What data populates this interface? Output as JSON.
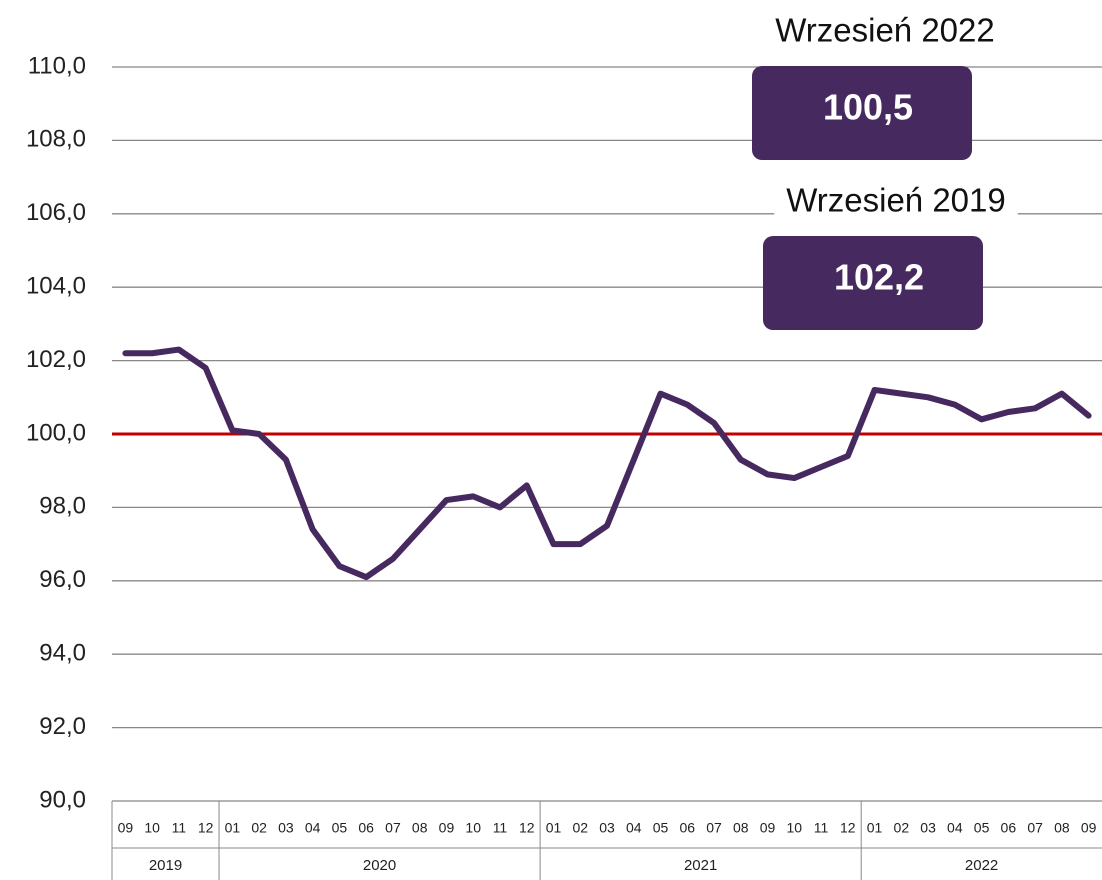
{
  "chart_data": {
    "type": "line",
    "x": [
      "09",
      "10",
      "11",
      "12",
      "01",
      "02",
      "03",
      "04",
      "05",
      "06",
      "07",
      "08",
      "09",
      "10",
      "11",
      "12",
      "01",
      "02",
      "03",
      "04",
      "05",
      "06",
      "07",
      "08",
      "09",
      "10",
      "11",
      "12",
      "01",
      "02",
      "03",
      "04",
      "05",
      "06",
      "07",
      "08",
      "09"
    ],
    "years": [
      "2019",
      "2019",
      "2019",
      "2019",
      "2020",
      "2020",
      "2020",
      "2020",
      "2020",
      "2020",
      "2020",
      "2020",
      "2020",
      "2020",
      "2020",
      "2020",
      "2021",
      "2021",
      "2021",
      "2021",
      "2021",
      "2021",
      "2021",
      "2021",
      "2021",
      "2021",
      "2021",
      "2021",
      "2022",
      "2022",
      "2022",
      "2022",
      "2022",
      "2022",
      "2022",
      "2022",
      "2022"
    ],
    "series": [
      {
        "color": "#46295e",
        "values": [
          102.2,
          102.2,
          102.3,
          101.8,
          100.1,
          100.0,
          99.3,
          97.4,
          96.4,
          96.1,
          96.6,
          97.4,
          98.2,
          98.3,
          98.0,
          98.6,
          97.0,
          97.0,
          97.5,
          99.3,
          101.1,
          100.8,
          100.3,
          99.3,
          98.9,
          98.8,
          99.1,
          99.4,
          101.2,
          101.1,
          101.0,
          100.8,
          100.4,
          100.6,
          100.7,
          101.1,
          100.5
        ]
      }
    ],
    "ylim": [
      90,
      110
    ],
    "yticks": [
      {
        "value": 90,
        "label": "90,0"
      },
      {
        "value": 92,
        "label": "92,0"
      },
      {
        "value": 94,
        "label": "94,0"
      },
      {
        "value": 96,
        "label": "96,0"
      },
      {
        "value": 98,
        "label": "98,0"
      },
      {
        "value": 100,
        "label": "100,0"
      },
      {
        "value": 102,
        "label": "102,0"
      },
      {
        "value": 104,
        "label": "104,0"
      },
      {
        "value": 106,
        "label": "106,0"
      },
      {
        "value": 108,
        "label": "108,0"
      },
      {
        "value": 110,
        "label": "110,0"
      }
    ],
    "grid": true,
    "reference_line": {
      "value": 100,
      "color": "#c00000"
    },
    "annotations": [
      {
        "title": "Wrzesień 2022",
        "text": "100,5"
      },
      {
        "title": "Wrzesień 2019",
        "text": "102,2"
      }
    ],
    "annotation_color": "#46295e"
  }
}
